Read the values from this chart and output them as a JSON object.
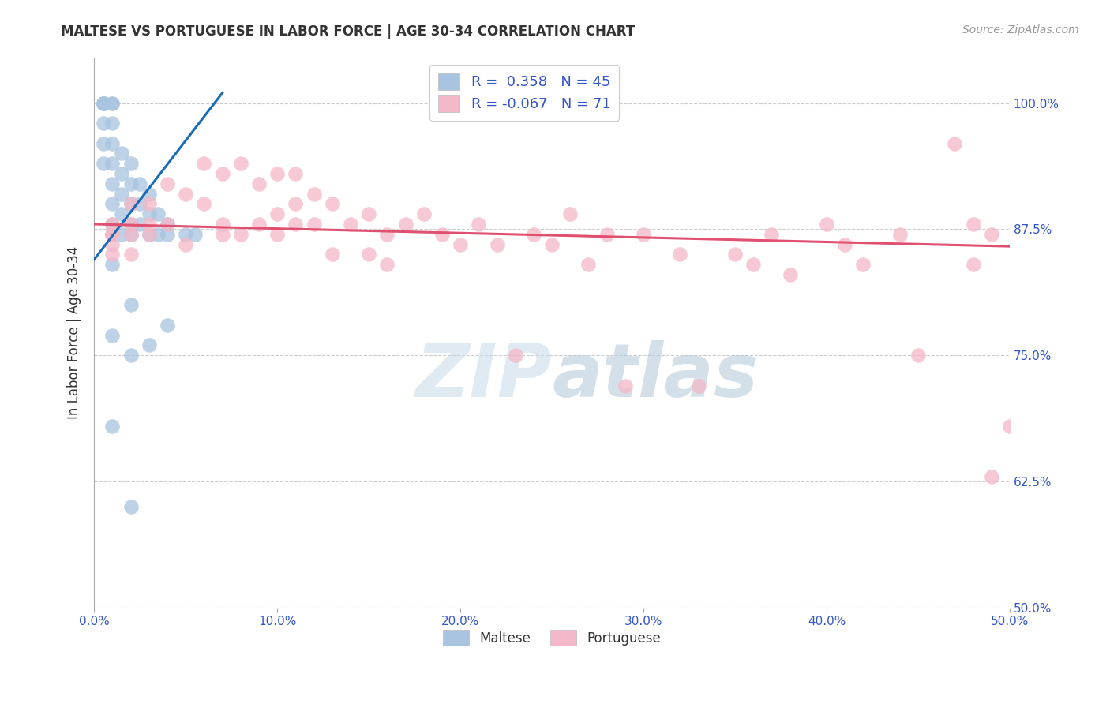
{
  "title": "MALTESE VS PORTUGUESE IN LABOR FORCE | AGE 30-34 CORRELATION CHART",
  "source_text": "Source: ZipAtlas.com",
  "ylabel": "In Labor Force | Age 30-34",
  "xmin": 0.0,
  "xmax": 0.5,
  "ymin": 0.5,
  "ymax": 1.045,
  "maltese_R": 0.358,
  "maltese_N": 45,
  "portuguese_R": -0.067,
  "portuguese_N": 71,
  "maltese_color": "#a8c4e0",
  "maltese_line_color": "#1a6bb5",
  "portuguese_color": "#f4b8c8",
  "portuguese_line_color": "#e05070",
  "legend_text_color": "#3355cc",
  "watermark_color": "#d0e8f5",
  "maltese_line_x0": 0.0,
  "maltese_line_y0": 0.845,
  "maltese_line_x1": 0.07,
  "maltese_line_y1": 1.01,
  "portuguese_line_x0": 0.0,
  "portuguese_line_y0": 0.88,
  "portuguese_line_x1": 0.5,
  "portuguese_line_y1": 0.858,
  "maltese_x": [
    0.005,
    0.005,
    0.005,
    0.005,
    0.005,
    0.005,
    0.01,
    0.01,
    0.01,
    0.01,
    0.01,
    0.01,
    0.01,
    0.01,
    0.01,
    0.015,
    0.015,
    0.015,
    0.015,
    0.015,
    0.02,
    0.02,
    0.02,
    0.02,
    0.02,
    0.025,
    0.025,
    0.025,
    0.03,
    0.03,
    0.03,
    0.035,
    0.035,
    0.04,
    0.04,
    0.05,
    0.055,
    0.01,
    0.02,
    0.01,
    0.02,
    0.03,
    0.04,
    0.01,
    0.02
  ],
  "maltese_y": [
    1.0,
    1.0,
    1.0,
    0.98,
    0.96,
    0.94,
    1.0,
    1.0,
    0.98,
    0.96,
    0.94,
    0.92,
    0.9,
    0.88,
    0.87,
    0.95,
    0.93,
    0.91,
    0.89,
    0.87,
    0.94,
    0.92,
    0.9,
    0.88,
    0.87,
    0.92,
    0.9,
    0.88,
    0.91,
    0.89,
    0.87,
    0.89,
    0.87,
    0.88,
    0.87,
    0.87,
    0.87,
    0.84,
    0.8,
    0.77,
    0.75,
    0.76,
    0.78,
    0.68,
    0.6
  ],
  "portuguese_x": [
    0.01,
    0.01,
    0.01,
    0.01,
    0.01,
    0.02,
    0.02,
    0.02,
    0.02,
    0.03,
    0.03,
    0.03,
    0.04,
    0.04,
    0.05,
    0.05,
    0.06,
    0.06,
    0.07,
    0.07,
    0.07,
    0.08,
    0.08,
    0.09,
    0.09,
    0.1,
    0.1,
    0.1,
    0.11,
    0.11,
    0.11,
    0.12,
    0.12,
    0.13,
    0.13,
    0.14,
    0.15,
    0.15,
    0.16,
    0.16,
    0.17,
    0.18,
    0.19,
    0.2,
    0.21,
    0.22,
    0.23,
    0.24,
    0.25,
    0.26,
    0.27,
    0.28,
    0.29,
    0.3,
    0.32,
    0.33,
    0.35,
    0.36,
    0.37,
    0.38,
    0.4,
    0.41,
    0.42,
    0.44,
    0.45,
    0.47,
    0.48,
    0.49,
    0.5,
    0.48,
    0.49
  ],
  "portuguese_y": [
    0.88,
    0.87,
    0.87,
    0.86,
    0.85,
    0.9,
    0.88,
    0.87,
    0.85,
    0.9,
    0.88,
    0.87,
    0.92,
    0.88,
    0.91,
    0.86,
    0.94,
    0.9,
    0.93,
    0.88,
    0.87,
    0.94,
    0.87,
    0.92,
    0.88,
    0.93,
    0.89,
    0.87,
    0.93,
    0.9,
    0.88,
    0.91,
    0.88,
    0.9,
    0.85,
    0.88,
    0.89,
    0.85,
    0.87,
    0.84,
    0.88,
    0.89,
    0.87,
    0.86,
    0.88,
    0.86,
    0.75,
    0.87,
    0.86,
    0.89,
    0.84,
    0.87,
    0.72,
    0.87,
    0.85,
    0.72,
    0.85,
    0.84,
    0.87,
    0.83,
    0.88,
    0.86,
    0.84,
    0.87,
    0.75,
    0.96,
    0.88,
    0.63,
    0.68,
    0.84,
    0.87
  ]
}
